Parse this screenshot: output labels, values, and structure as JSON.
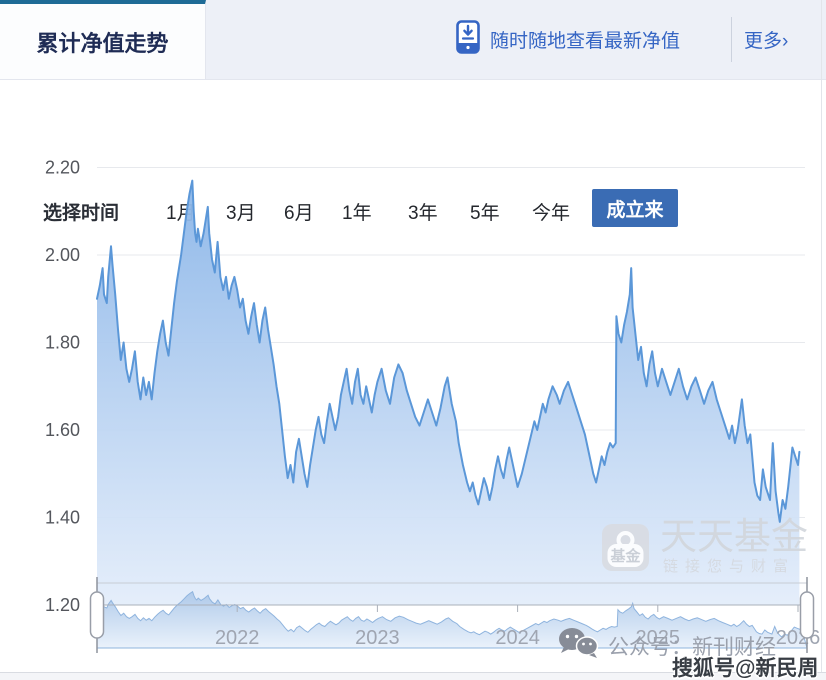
{
  "header": {
    "tab": "累计净值走势",
    "banner": "随时随地查看最新净值",
    "more": "更多›"
  },
  "time_selector": {
    "label": "选择时间",
    "options": [
      "1月",
      "3月",
      "6月",
      "1年",
      "3年",
      "5年",
      "今年",
      "成立来"
    ],
    "active": "成立来"
  },
  "chart_data": {
    "type": "area",
    "title": "累计净值走势",
    "ylabel": "累计净值",
    "ylim": [
      1.2,
      2.2
    ],
    "y_ticks": [
      "2.20",
      "2.00",
      "1.80",
      "1.60",
      "1.40",
      "1.20"
    ],
    "y_tick_values": [
      2.2,
      2.0,
      1.8,
      1.6,
      1.4,
      1.2
    ],
    "xlim": [
      2021.0,
      2026.05
    ],
    "x_ticks": [
      "2022",
      "2023",
      "2024",
      "2025",
      "2026"
    ],
    "x_tick_values": [
      2022,
      2023,
      2024,
      2025,
      2026
    ],
    "grid": true,
    "legend_position": "none",
    "line_color": "#5b97d8",
    "navigator": true,
    "series": [
      {
        "name": "累计净值",
        "points": [
          [
            2021.0,
            1.9
          ],
          [
            2021.02,
            1.93
          ],
          [
            2021.04,
            1.97
          ],
          [
            2021.05,
            1.91
          ],
          [
            2021.07,
            1.89
          ],
          [
            2021.08,
            1.95
          ],
          [
            2021.1,
            2.02
          ],
          [
            2021.11,
            1.98
          ],
          [
            2021.13,
            1.91
          ],
          [
            2021.15,
            1.83
          ],
          [
            2021.17,
            1.76
          ],
          [
            2021.19,
            1.8
          ],
          [
            2021.21,
            1.74
          ],
          [
            2021.23,
            1.71
          ],
          [
            2021.25,
            1.74
          ],
          [
            2021.27,
            1.78
          ],
          [
            2021.29,
            1.71
          ],
          [
            2021.31,
            1.67
          ],
          [
            2021.33,
            1.72
          ],
          [
            2021.35,
            1.68
          ],
          [
            2021.37,
            1.71
          ],
          [
            2021.39,
            1.67
          ],
          [
            2021.41,
            1.73
          ],
          [
            2021.43,
            1.78
          ],
          [
            2021.45,
            1.82
          ],
          [
            2021.47,
            1.85
          ],
          [
            2021.49,
            1.8
          ],
          [
            2021.51,
            1.77
          ],
          [
            2021.53,
            1.83
          ],
          [
            2021.55,
            1.89
          ],
          [
            2021.57,
            1.94
          ],
          [
            2021.6,
            2.0
          ],
          [
            2021.62,
            2.05
          ],
          [
            2021.64,
            2.1
          ],
          [
            2021.66,
            2.14
          ],
          [
            2021.68,
            2.17
          ],
          [
            2021.69,
            2.1
          ],
          [
            2021.7,
            2.05
          ],
          [
            2021.71,
            2.03
          ],
          [
            2021.72,
            2.06
          ],
          [
            2021.74,
            2.02
          ],
          [
            2021.76,
            2.05
          ],
          [
            2021.78,
            2.09
          ],
          [
            2021.79,
            2.11
          ],
          [
            2021.8,
            2.05
          ],
          [
            2021.82,
            1.99
          ],
          [
            2021.84,
            1.96
          ],
          [
            2021.86,
            2.03
          ],
          [
            2021.88,
            1.95
          ],
          [
            2021.9,
            1.92
          ],
          [
            2021.92,
            1.95
          ],
          [
            2021.94,
            1.9
          ],
          [
            2021.96,
            1.93
          ],
          [
            2021.98,
            1.95
          ],
          [
            2022.0,
            1.92
          ],
          [
            2022.02,
            1.88
          ],
          [
            2022.04,
            1.9
          ],
          [
            2022.06,
            1.85
          ],
          [
            2022.08,
            1.82
          ],
          [
            2022.1,
            1.86
          ],
          [
            2022.12,
            1.89
          ],
          [
            2022.14,
            1.84
          ],
          [
            2022.16,
            1.8
          ],
          [
            2022.18,
            1.85
          ],
          [
            2022.2,
            1.88
          ],
          [
            2022.22,
            1.83
          ],
          [
            2022.24,
            1.79
          ],
          [
            2022.26,
            1.75
          ],
          [
            2022.28,
            1.7
          ],
          [
            2022.3,
            1.66
          ],
          [
            2022.32,
            1.6
          ],
          [
            2022.34,
            1.54
          ],
          [
            2022.36,
            1.49
          ],
          [
            2022.38,
            1.52
          ],
          [
            2022.4,
            1.48
          ],
          [
            2022.42,
            1.55
          ],
          [
            2022.44,
            1.58
          ],
          [
            2022.46,
            1.54
          ],
          [
            2022.48,
            1.5
          ],
          [
            2022.5,
            1.47
          ],
          [
            2022.52,
            1.52
          ],
          [
            2022.54,
            1.56
          ],
          [
            2022.56,
            1.6
          ],
          [
            2022.58,
            1.63
          ],
          [
            2022.6,
            1.59
          ],
          [
            2022.62,
            1.57
          ],
          [
            2022.64,
            1.62
          ],
          [
            2022.66,
            1.66
          ],
          [
            2022.68,
            1.63
          ],
          [
            2022.7,
            1.6
          ],
          [
            2022.72,
            1.63
          ],
          [
            2022.74,
            1.68
          ],
          [
            2022.76,
            1.71
          ],
          [
            2022.78,
            1.74
          ],
          [
            2022.8,
            1.69
          ],
          [
            2022.82,
            1.66
          ],
          [
            2022.84,
            1.71
          ],
          [
            2022.86,
            1.74
          ],
          [
            2022.88,
            1.68
          ],
          [
            2022.9,
            1.66
          ],
          [
            2022.92,
            1.7
          ],
          [
            2022.94,
            1.67
          ],
          [
            2022.96,
            1.64
          ],
          [
            2022.98,
            1.68
          ],
          [
            2023.0,
            1.71
          ],
          [
            2023.03,
            1.74
          ],
          [
            2023.06,
            1.69
          ],
          [
            2023.09,
            1.66
          ],
          [
            2023.12,
            1.72
          ],
          [
            2023.15,
            1.75
          ],
          [
            2023.18,
            1.73
          ],
          [
            2023.21,
            1.69
          ],
          [
            2023.24,
            1.66
          ],
          [
            2023.27,
            1.63
          ],
          [
            2023.3,
            1.61
          ],
          [
            2023.33,
            1.64
          ],
          [
            2023.36,
            1.67
          ],
          [
            2023.39,
            1.64
          ],
          [
            2023.42,
            1.61
          ],
          [
            2023.45,
            1.65
          ],
          [
            2023.48,
            1.7
          ],
          [
            2023.5,
            1.72
          ],
          [
            2023.53,
            1.66
          ],
          [
            2023.56,
            1.62
          ],
          [
            2023.58,
            1.57
          ],
          [
            2023.61,
            1.52
          ],
          [
            2023.64,
            1.48
          ],
          [
            2023.66,
            1.46
          ],
          [
            2023.68,
            1.48
          ],
          [
            2023.7,
            1.45
          ],
          [
            2023.72,
            1.43
          ],
          [
            2023.74,
            1.46
          ],
          [
            2023.76,
            1.49
          ],
          [
            2023.78,
            1.47
          ],
          [
            2023.8,
            1.44
          ],
          [
            2023.82,
            1.47
          ],
          [
            2023.84,
            1.51
          ],
          [
            2023.86,
            1.54
          ],
          [
            2023.88,
            1.51
          ],
          [
            2023.9,
            1.49
          ],
          [
            2023.92,
            1.53
          ],
          [
            2023.94,
            1.56
          ],
          [
            2023.96,
            1.53
          ],
          [
            2023.98,
            1.5
          ],
          [
            2024.0,
            1.47
          ],
          [
            2024.03,
            1.5
          ],
          [
            2024.06,
            1.54
          ],
          [
            2024.09,
            1.58
          ],
          [
            2024.12,
            1.62
          ],
          [
            2024.14,
            1.6
          ],
          [
            2024.16,
            1.63
          ],
          [
            2024.18,
            1.66
          ],
          [
            2024.2,
            1.64
          ],
          [
            2024.22,
            1.67
          ],
          [
            2024.25,
            1.7
          ],
          [
            2024.28,
            1.68
          ],
          [
            2024.3,
            1.66
          ],
          [
            2024.33,
            1.69
          ],
          [
            2024.36,
            1.71
          ],
          [
            2024.39,
            1.68
          ],
          [
            2024.42,
            1.65
          ],
          [
            2024.45,
            1.62
          ],
          [
            2024.48,
            1.59
          ],
          [
            2024.5,
            1.56
          ],
          [
            2024.52,
            1.53
          ],
          [
            2024.54,
            1.5
          ],
          [
            2024.56,
            1.48
          ],
          [
            2024.58,
            1.51
          ],
          [
            2024.6,
            1.54
          ],
          [
            2024.62,
            1.52
          ],
          [
            2024.64,
            1.55
          ],
          [
            2024.66,
            1.57
          ],
          [
            2024.68,
            1.56
          ],
          [
            2024.7,
            1.57
          ],
          [
            2024.705,
            1.86
          ],
          [
            2024.72,
            1.82
          ],
          [
            2024.74,
            1.8
          ],
          [
            2024.76,
            1.84
          ],
          [
            2024.78,
            1.87
          ],
          [
            2024.8,
            1.91
          ],
          [
            2024.81,
            1.97
          ],
          [
            2024.82,
            1.88
          ],
          [
            2024.84,
            1.82
          ],
          [
            2024.86,
            1.76
          ],
          [
            2024.88,
            1.79
          ],
          [
            2024.9,
            1.73
          ],
          [
            2024.92,
            1.7
          ],
          [
            2024.94,
            1.75
          ],
          [
            2024.96,
            1.78
          ],
          [
            2024.98,
            1.73
          ],
          [
            2025.0,
            1.7
          ],
          [
            2025.03,
            1.74
          ],
          [
            2025.06,
            1.71
          ],
          [
            2025.09,
            1.68
          ],
          [
            2025.12,
            1.71
          ],
          [
            2025.15,
            1.74
          ],
          [
            2025.18,
            1.7
          ],
          [
            2025.21,
            1.67
          ],
          [
            2025.24,
            1.7
          ],
          [
            2025.27,
            1.72
          ],
          [
            2025.3,
            1.69
          ],
          [
            2025.33,
            1.66
          ],
          [
            2025.36,
            1.69
          ],
          [
            2025.39,
            1.71
          ],
          [
            2025.42,
            1.67
          ],
          [
            2025.45,
            1.64
          ],
          [
            2025.48,
            1.61
          ],
          [
            2025.51,
            1.58
          ],
          [
            2025.53,
            1.61
          ],
          [
            2025.55,
            1.57
          ],
          [
            2025.57,
            1.6
          ],
          [
            2025.6,
            1.67
          ],
          [
            2025.62,
            1.61
          ],
          [
            2025.64,
            1.57
          ],
          [
            2025.66,
            1.59
          ],
          [
            2025.69,
            1.48
          ],
          [
            2025.71,
            1.45
          ],
          [
            2025.73,
            1.44
          ],
          [
            2025.75,
            1.51
          ],
          [
            2025.77,
            1.47
          ],
          [
            2025.8,
            1.44
          ],
          [
            2025.82,
            1.57
          ],
          [
            2025.84,
            1.46
          ],
          [
            2025.86,
            1.41
          ],
          [
            2025.87,
            1.39
          ],
          [
            2025.89,
            1.44
          ],
          [
            2025.91,
            1.42
          ],
          [
            2025.93,
            1.47
          ],
          [
            2025.96,
            1.56
          ],
          [
            2025.98,
            1.54
          ],
          [
            2026.0,
            1.52
          ],
          [
            2026.01,
            1.55
          ]
        ]
      }
    ]
  },
  "watermarks": {
    "brand": "天天基金",
    "brand_slogan": "链接您与财富",
    "brand_icon_text": "基金",
    "wechat": "公众号：新刊财经",
    "sohu": "搜狐号@新民周刊"
  },
  "colors": {
    "accent_tab_border": "#1e6b96",
    "link_blue": "#3565c4",
    "active_button_bg": "#3a6cb4",
    "line": "#5b97d8",
    "fill_top": "#8ab5e8",
    "fill_bottom": "#e2ecfa",
    "grid": "#e7e9ed",
    "axis": "#aab0ba",
    "tick_label": "#53565c",
    "year_label": "#9fa5b1"
  }
}
